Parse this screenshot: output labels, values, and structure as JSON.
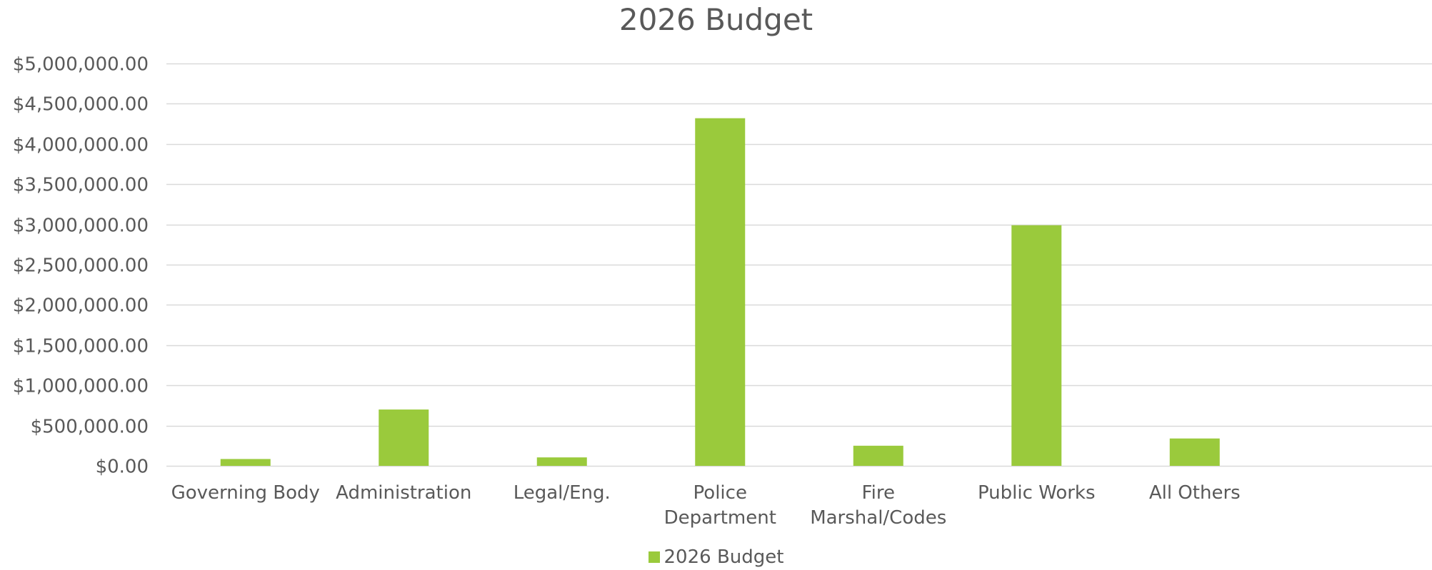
{
  "chart_data": {
    "type": "bar",
    "title": "2026 Budget",
    "categories": [
      "Governing Body",
      "Administration",
      "Legal/Eng.",
      "Police Department",
      "Fire Marshal/Codes",
      "Public Works",
      "All Others"
    ],
    "category_lines": [
      [
        "Governing Body"
      ],
      [
        "Administration"
      ],
      [
        "Legal/Eng."
      ],
      [
        "Police",
        "Department"
      ],
      [
        "Fire",
        "Marshal/Codes"
      ],
      [
        "Public Works"
      ],
      [
        "All Others"
      ]
    ],
    "series": [
      {
        "name": "2026 Budget",
        "color": "#9ACA3C",
        "values": [
          85000,
          700000,
          105000,
          4320000,
          250000,
          2990000,
          340000
        ]
      }
    ],
    "ylim": [
      0,
      5000000
    ],
    "yticks": [
      0,
      500000,
      1000000,
      1500000,
      2000000,
      2500000,
      3000000,
      3500000,
      4000000,
      4500000,
      5000000
    ],
    "ytick_labels": [
      "$0.00",
      "$500,000.00",
      "$1,000,000.00",
      "$1,500,000.00",
      "$2,000,000.00",
      "$2,500,000.00",
      "$3,000,000.00",
      "$3,500,000.00",
      "$4,000,000.00",
      "$4,500,000.00",
      "$5,000,000.00"
    ],
    "grid": true,
    "legend_position": "bottom",
    "gridline_color": "#D9D9D9",
    "text_color": "#595959"
  }
}
